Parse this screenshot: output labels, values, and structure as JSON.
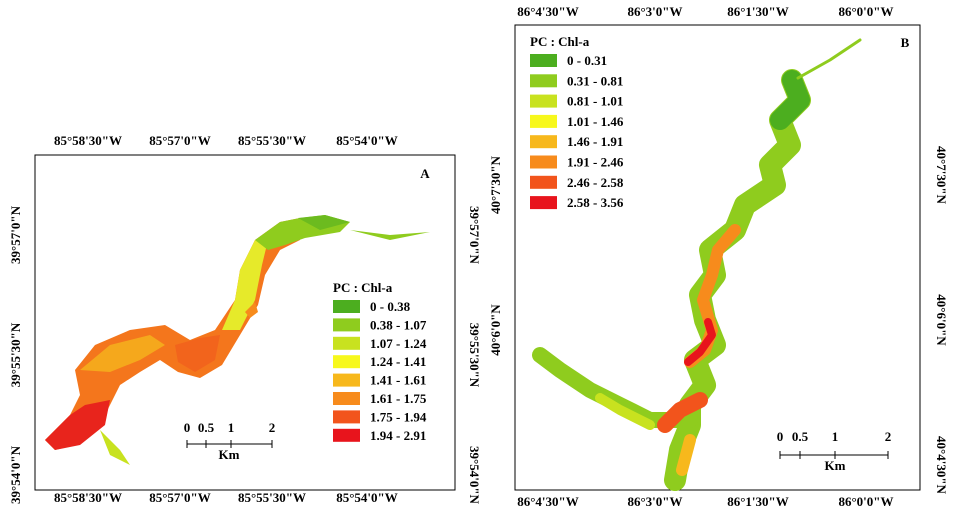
{
  "panels": [
    {
      "label": "A",
      "top_labels": [
        "85°58'30\"W",
        "85°57'0\"W",
        "85°55'30\"W",
        "85°54'0\"W"
      ],
      "bottom_labels": [
        "85°58'30\"W",
        "85°57'0\"W",
        "85°55'30\"W",
        "85°54'0\"W"
      ],
      "left_labels": [
        "39°57'0\"N",
        "39°55'30\"N",
        "39°54'0\"N"
      ],
      "right_labels": [
        "39°57'0\"N",
        "39°55'30\"N",
        "39°54'0\"N"
      ],
      "legend": {
        "title": "PC : Chl-a",
        "classes": [
          {
            "range": "0 - 0.38",
            "color": "#4cae1f"
          },
          {
            "range": "0.38 - 1.07",
            "color": "#8fcc1e"
          },
          {
            "range": "1.07 - 1.24",
            "color": "#c8e21f"
          },
          {
            "range": "1.24 - 1.41",
            "color": "#f7f81c"
          },
          {
            "range": "1.41 - 1.61",
            "color": "#f7b81c"
          },
          {
            "range": "1.61 - 1.75",
            "color": "#f78b1c"
          },
          {
            "range": "1.75 - 1.94",
            "color": "#f2541c"
          },
          {
            "range": "1.94 - 2.91",
            "color": "#e8141c"
          }
        ]
      },
      "scale": {
        "ticks": [
          "0",
          "0.5",
          "1",
          "2"
        ],
        "unit": "Km"
      }
    },
    {
      "label": "B",
      "top_labels": [
        "86°4'30\"W",
        "86°3'0\"W",
        "86°1'30\"W",
        "86°0'0\"W"
      ],
      "bottom_labels": [
        "86°4'30\"W",
        "86°3'0\"W",
        "86°1'30\"W",
        "86°0'0\"W"
      ],
      "left_labels": [
        "40°7'30\"N",
        "40°6'0\"N"
      ],
      "right_labels": [
        "40°7'30\"N",
        "40°6'0\"N",
        "40°4'30\"N"
      ],
      "legend": {
        "title": "PC : Chl-a",
        "classes": [
          {
            "range": "0 - 0.31",
            "color": "#4cae1f"
          },
          {
            "range": "0.31 - 0.81",
            "color": "#8fcc1e"
          },
          {
            "range": "0.81 - 1.01",
            "color": "#c8e21f"
          },
          {
            "range": "1.01 - 1.46",
            "color": "#f7f81c"
          },
          {
            "range": "1.46 - 1.91",
            "color": "#f7b81c"
          },
          {
            "range": "1.91 - 2.46",
            "color": "#f78b1c"
          },
          {
            "range": "2.46 - 2.58",
            "color": "#f2541c"
          },
          {
            "range": "2.58 - 3.56",
            "color": "#e8141c"
          }
        ]
      },
      "scale": {
        "ticks": [
          "0",
          "0.5",
          "1",
          "2"
        ],
        "unit": "Km"
      }
    }
  ]
}
